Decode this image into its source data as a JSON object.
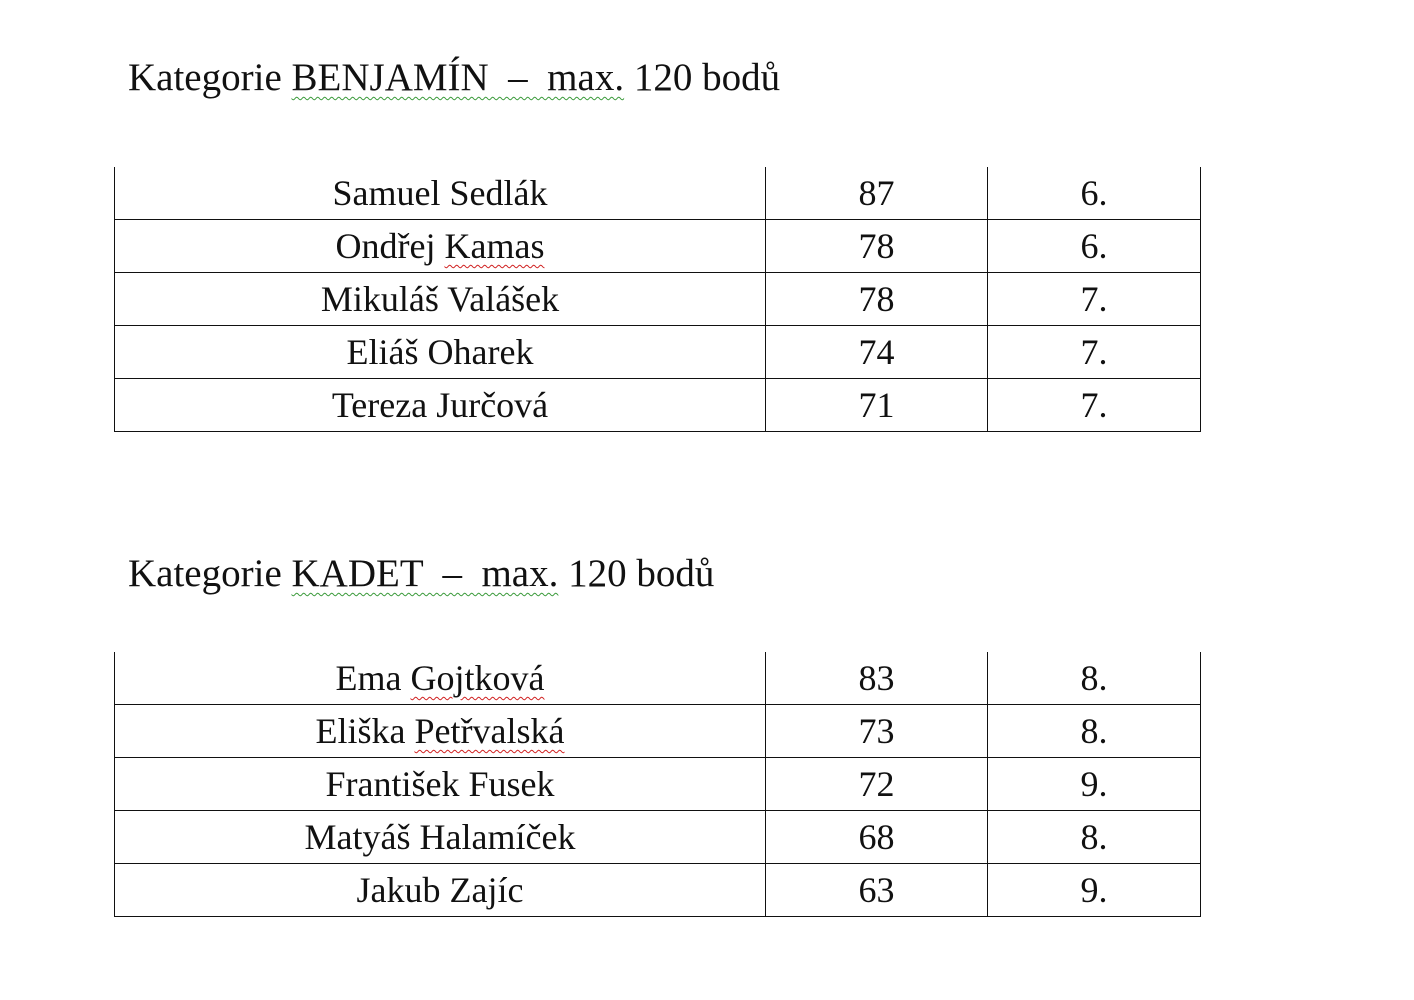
{
  "sections": [
    {
      "heading": {
        "prefix": "Kategorie ",
        "category": "BENJAMÍN  –  max.",
        "suffix": " 120 bodů"
      },
      "rows": [
        {
          "name": "Samuel Sedlák",
          "points": "87",
          "grade": "6."
        },
        {
          "name": "Ondřej Kamas",
          "points": "78",
          "grade": "6."
        },
        {
          "name": "Mikuláš Valášek",
          "points": "78",
          "grade": "7."
        },
        {
          "name": "Eliáš Oharek",
          "points": "74",
          "grade": "7."
        },
        {
          "name": "Tereza Jurčová",
          "points": "71",
          "grade": "7."
        }
      ]
    },
    {
      "heading": {
        "prefix": "Kategorie ",
        "category": "KADET  –  max.",
        "suffix": " 120 bodů"
      },
      "rows": [
        {
          "name": "Ema Gojtková",
          "points": "83",
          "grade": "8."
        },
        {
          "name": "Eliška Petřvalská",
          "points": "73",
          "grade": "8."
        },
        {
          "name": "František Fusek",
          "points": "72",
          "grade": "9."
        },
        {
          "name": "Matyáš Halamíček",
          "points": "68",
          "grade": "8."
        },
        {
          "name": "Jakub Zajíc",
          "points": "63",
          "grade": "9."
        }
      ]
    }
  ],
  "spellcheck_flagged_words": [
    "Kamas",
    "Gojtková",
    "Petřvalská"
  ],
  "colors": {
    "grammar_underline": "#3a9a3a",
    "spelling_underline": "#d02020"
  }
}
